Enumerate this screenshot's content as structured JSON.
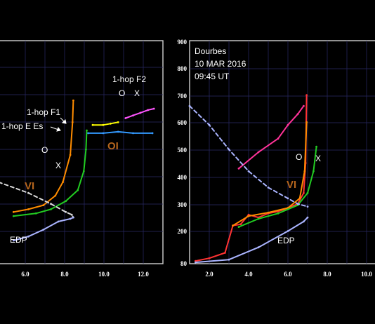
{
  "chart_data": [
    {
      "type": "line",
      "x_ticks": [
        "6.0",
        "8.0",
        "10.0",
        "12.0"
      ],
      "xlim": [
        2.0,
        13.0
      ],
      "ylim": [
        80,
        900
      ],
      "grid": true,
      "annotations": {
        "f2": "1-hop F2",
        "f1": "1-hop F1",
        "e_es": "1-hop E Es",
        "o_hop": "O",
        "x_hop": "X",
        "o_main": "O",
        "x_main": "X",
        "roman_vi": "VI",
        "roman_oi": "OI",
        "edp": "EDP"
      },
      "series": [
        {
          "name": "",
          "color": "#ff8c00",
          "x": [
            3.0,
            4.0,
            5.0,
            5.8,
            6.3,
            6.8,
            6.95,
            7.0
          ],
          "y": [
            270,
            280,
            295,
            330,
            380,
            480,
            600,
            680
          ]
        },
        {
          "name": "",
          "color": "#22cc22",
          "x": [
            3.0,
            4.5,
            5.5,
            6.5,
            7.3,
            7.7,
            7.85,
            7.9
          ],
          "y": [
            255,
            265,
            280,
            310,
            350,
            420,
            500,
            570
          ]
        },
        {
          "name": "",
          "color": "#d8d8d8",
          "x": [
            2.0,
            4.0,
            5.5,
            6.5,
            6.9,
            7.0
          ],
          "y": [
            380,
            340,
            300,
            270,
            260,
            250
          ]
        },
        {
          "name": "",
          "color": "#aab4ff",
          "x": [
            3.0,
            4.0,
            5.0,
            6.0,
            6.8,
            7.0
          ],
          "y": [
            165,
            180,
            205,
            235,
            245,
            250
          ]
        },
        {
          "name": "",
          "color": "#ff55ff",
          "x": [
            10.5,
            11.0,
            11.5,
            12.0,
            12.4
          ],
          "y": [
            615,
            625,
            635,
            645,
            650
          ]
        },
        {
          "name": "",
          "color": "#ffff00",
          "x": [
            8.3,
            9.0,
            9.5,
            10.0
          ],
          "y": [
            590,
            590,
            595,
            600
          ]
        },
        {
          "name": "",
          "color": "#3399ff",
          "x": [
            8.0,
            9.0,
            10.0,
            11.0,
            12.3
          ],
          "y": [
            560,
            560,
            565,
            560,
            560
          ]
        }
      ]
    },
    {
      "type": "line",
      "x_ticks": [
        "2.0",
        "4.0",
        "6.0",
        "8.0",
        "10.0"
      ],
      "y_ticks": [
        "80",
        "200",
        "300",
        "400",
        "500",
        "600",
        "700",
        "800",
        "900"
      ],
      "xlim": [
        1.0,
        10.5
      ],
      "ylim": [
        80,
        900
      ],
      "grid": true,
      "header": [
        "Dourbes",
        "10 MAR 2016",
        "09:45 UT"
      ],
      "annotations": {
        "o_main": "O",
        "x_main": "X",
        "roman_vi": "VI",
        "edp": "EDP"
      },
      "series": [
        {
          "name": "",
          "color": "#ff3333",
          "x": [
            1.3,
            2.0,
            2.8,
            3.2,
            3.6,
            4.0,
            4.5,
            5.0,
            5.5,
            6.0,
            6.5,
            6.8,
            6.9,
            6.95
          ],
          "y": [
            90,
            100,
            120,
            220,
            225,
            260,
            250,
            265,
            272,
            285,
            300,
            340,
            450,
            700
          ]
        },
        {
          "name": "",
          "color": "#ff8c00",
          "x": [
            3.2,
            4.0,
            5.0,
            6.0,
            6.6,
            6.85,
            6.95
          ],
          "y": [
            220,
            255,
            268,
            285,
            320,
            420,
            600
          ]
        },
        {
          "name": "",
          "color": "#22cc22",
          "x": [
            3.5,
            4.5,
            5.5,
            6.5,
            7.0,
            7.3,
            7.45
          ],
          "y": [
            215,
            245,
            265,
            295,
            340,
            420,
            510
          ]
        },
        {
          "name": "",
          "color": "#ff3399",
          "x": [
            3.5,
            4.5,
            5.5,
            6.0,
            6.5,
            6.8
          ],
          "y": [
            430,
            490,
            540,
            590,
            630,
            660
          ]
        },
        {
          "name": "",
          "color": "#aab4ff",
          "x": [
            1.3,
            3.0,
            4.5,
            6.0,
            6.8,
            7.0
          ],
          "y": [
            85,
            95,
            140,
            200,
            235,
            250
          ]
        },
        {
          "name": "",
          "color": "#aab4ff",
          "x": [
            1.0,
            2.0,
            3.0,
            4.0,
            5.0,
            6.0,
            6.5,
            7.0
          ],
          "y": [
            660,
            590,
            500,
            420,
            360,
            320,
            300,
            290
          ]
        }
      ]
    }
  ]
}
